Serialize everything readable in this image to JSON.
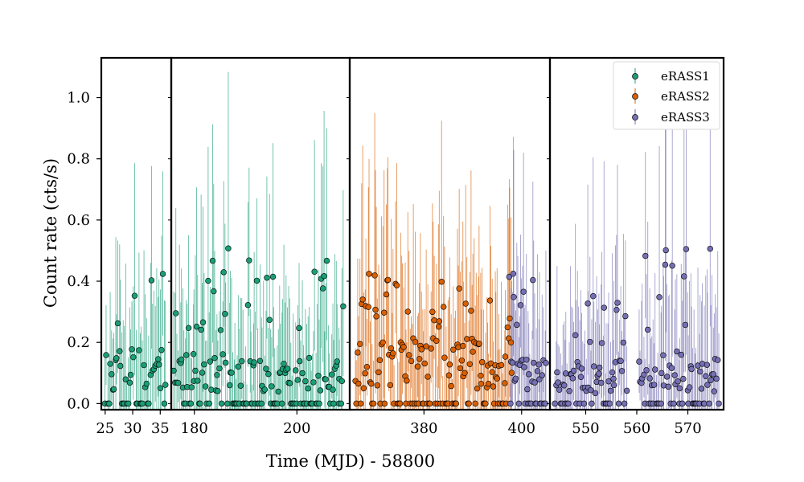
{
  "chart_data": {
    "type": "scatter",
    "ylabel": "Count rate (cts/s)",
    "xlabel": "Time (MJD) - 58800",
    "ylim": [
      -0.02,
      1.13
    ],
    "yticks": [
      0.0,
      0.2,
      0.4,
      0.6,
      0.8,
      1.0
    ],
    "ytick_labels": [
      "0.0",
      "0.2",
      "0.4",
      "0.6",
      "0.8",
      "1.0"
    ],
    "legend_position": "top-right",
    "legend": [
      {
        "name": "eRASS1",
        "color": "#1b9e77"
      },
      {
        "name": "eRASS2",
        "color": "#d95f02"
      },
      {
        "name": "eRASS3",
        "color": "#7570b3"
      }
    ],
    "panels": [
      {
        "xlim": [
          24.3,
          37.0
        ],
        "xticks": [
          25,
          30,
          35
        ],
        "xtick_labels": [
          "25",
          "30",
          "35"
        ]
      },
      {
        "xlim": [
          175.5,
          210.3
        ],
        "xticks": [
          180,
          200
        ],
        "xtick_labels": [
          "180",
          "200"
        ]
      },
      {
        "xlim": [
          364.8,
          405.8
        ],
        "xticks": [
          380,
          400
        ],
        "xtick_labels": [
          "380",
          "400"
        ]
      },
      {
        "xlim": [
          543.0,
          577.0
        ],
        "xticks": [
          550,
          560,
          570
        ],
        "xtick_labels": [
          "550",
          "560",
          "570"
        ]
      }
    ],
    "series": [
      {
        "name": "eRASS1",
        "color": "#1b9e77",
        "segments": [
          {
            "panel": 0,
            "x_start": 25.0,
            "x_end": 36.0,
            "n": 48,
            "base": 0.1,
            "amp": 0.12,
            "seed": 11
          },
          {
            "panel": 1,
            "x_start": 176.0,
            "x_end": 209.0,
            "n": 150,
            "base": 0.09,
            "amp": 0.14,
            "seed": 23
          }
        ]
      },
      {
        "name": "eRASS2",
        "color": "#d95f02",
        "segments": [
          {
            "panel": 2,
            "x_start": 366.0,
            "x_end": 398.0,
            "n": 150,
            "base": 0.12,
            "amp": 0.12,
            "seed": 37
          }
        ]
      },
      {
        "name": "eRASS3",
        "color": "#7570b3",
        "segments": [
          {
            "panel": 2,
            "x_start": 397.5,
            "x_end": 405.0,
            "n": 40,
            "base": 0.08,
            "amp": 0.12,
            "seed": 41
          },
          {
            "panel": 3,
            "x_start": 544.0,
            "x_end": 558.0,
            "n": 65,
            "base": 0.08,
            "amp": 0.1,
            "seed": 53
          },
          {
            "panel": 3,
            "x_start": 560.5,
            "x_end": 576.0,
            "n": 75,
            "base": 0.1,
            "amp": 0.14,
            "seed": 67
          }
        ]
      }
    ]
  }
}
